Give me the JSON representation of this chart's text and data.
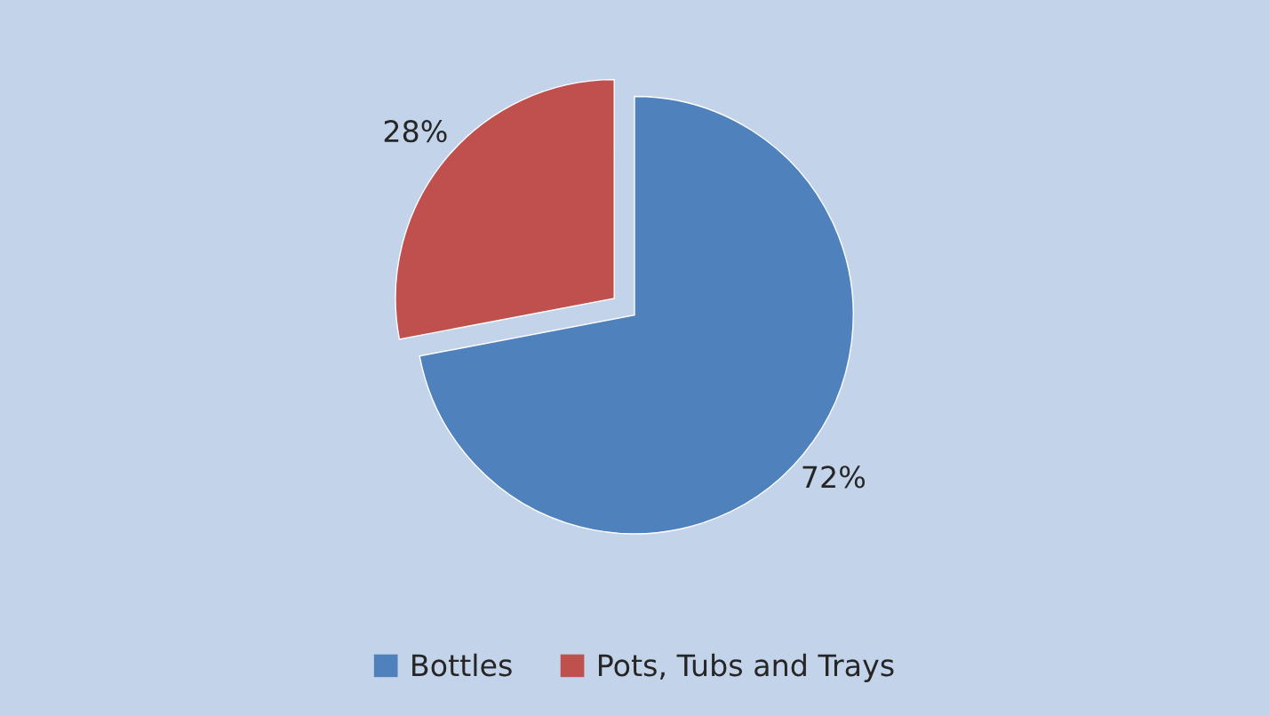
{
  "chart_data": {
    "type": "pie",
    "categories": [
      "Bottles",
      "Pots, Tubs and Trays"
    ],
    "values": [
      72,
      28
    ],
    "colors": [
      "#4f81bd",
      "#c0504d"
    ],
    "value_labels": [
      "72%",
      "28%"
    ],
    "legend": "bottom"
  }
}
